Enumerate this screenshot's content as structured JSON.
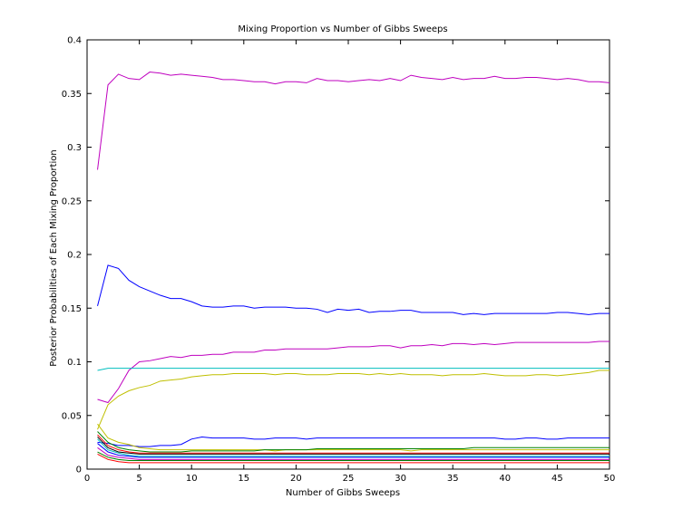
{
  "chart_data": {
    "type": "line",
    "title": "Mixing Proportion vs Number of Gibbs Sweeps",
    "xlabel": "Number of Gibbs Sweeps",
    "ylabel": "Posterior Probabilities of Each Mixing Proportion",
    "xlim": [
      0,
      50
    ],
    "ylim": [
      0,
      0.4
    ],
    "xticks": [
      0,
      5,
      10,
      15,
      20,
      25,
      30,
      35,
      40,
      45,
      50
    ],
    "yticks": [
      0,
      0.05,
      0.1,
      0.15,
      0.2,
      0.25,
      0.3,
      0.35,
      0.4
    ],
    "grid": false,
    "legend": "none",
    "x": [
      1,
      2,
      3,
      4,
      5,
      6,
      7,
      8,
      9,
      10,
      11,
      12,
      13,
      14,
      15,
      16,
      17,
      18,
      19,
      20,
      21,
      22,
      23,
      24,
      25,
      26,
      27,
      28,
      29,
      30,
      31,
      32,
      33,
      34,
      35,
      36,
      37,
      38,
      39,
      40,
      41,
      42,
      43,
      44,
      45,
      46,
      47,
      48,
      49,
      50
    ],
    "series": [
      {
        "color": "#bf00bf",
        "values": [
          0.279,
          0.358,
          0.368,
          0.364,
          0.363,
          0.37,
          0.369,
          0.367,
          0.368,
          0.367,
          0.366,
          0.365,
          0.363,
          0.363,
          0.362,
          0.361,
          0.361,
          0.359,
          0.361,
          0.361,
          0.36,
          0.364,
          0.362,
          0.362,
          0.361,
          0.362,
          0.363,
          0.362,
          0.364,
          0.362,
          0.367,
          0.365,
          0.364,
          0.363,
          0.365,
          0.363,
          0.364,
          0.364,
          0.366,
          0.364,
          0.364,
          0.365,
          0.365,
          0.364,
          0.363,
          0.364,
          0.363,
          0.361,
          0.361,
          0.36
        ]
      },
      {
        "color": "#0000ff",
        "values": [
          0.152,
          0.19,
          0.187,
          0.176,
          0.17,
          0.166,
          0.162,
          0.159,
          0.159,
          0.156,
          0.152,
          0.151,
          0.151,
          0.152,
          0.152,
          0.15,
          0.151,
          0.151,
          0.151,
          0.15,
          0.15,
          0.149,
          0.146,
          0.149,
          0.148,
          0.149,
          0.146,
          0.147,
          0.147,
          0.148,
          0.148,
          0.146,
          0.146,
          0.146,
          0.146,
          0.144,
          0.145,
          0.144,
          0.145,
          0.145,
          0.145,
          0.145,
          0.145,
          0.145,
          0.146,
          0.146,
          0.145,
          0.144,
          0.145,
          0.145
        ]
      },
      {
        "color": "#bf00bf",
        "values": [
          0.065,
          0.062,
          0.075,
          0.092,
          0.1,
          0.101,
          0.103,
          0.105,
          0.104,
          0.106,
          0.106,
          0.107,
          0.107,
          0.109,
          0.109,
          0.109,
          0.111,
          0.111,
          0.112,
          0.112,
          0.112,
          0.112,
          0.112,
          0.113,
          0.114,
          0.114,
          0.114,
          0.115,
          0.115,
          0.113,
          0.115,
          0.115,
          0.116,
          0.115,
          0.117,
          0.117,
          0.116,
          0.117,
          0.116,
          0.117,
          0.118,
          0.118,
          0.118,
          0.118,
          0.118,
          0.118,
          0.118,
          0.118,
          0.119,
          0.119
        ]
      },
      {
        "color": "#00bfbf",
        "values": [
          0.092,
          0.094,
          0.094,
          0.094,
          0.094,
          0.094,
          0.094,
          0.094,
          0.094,
          0.094,
          0.094,
          0.094,
          0.094,
          0.094,
          0.094,
          0.094,
          0.094,
          0.094,
          0.094,
          0.094,
          0.094,
          0.094,
          0.094,
          0.094,
          0.094,
          0.094,
          0.094,
          0.094,
          0.094,
          0.094,
          0.094,
          0.094,
          0.094,
          0.094,
          0.094,
          0.094,
          0.094,
          0.094,
          0.094,
          0.094,
          0.094,
          0.094,
          0.094,
          0.094,
          0.094,
          0.094,
          0.094,
          0.094,
          0.094,
          0.094
        ]
      },
      {
        "color": "#bfbf00",
        "values": [
          0.037,
          0.06,
          0.068,
          0.073,
          0.076,
          0.078,
          0.082,
          0.083,
          0.084,
          0.086,
          0.087,
          0.088,
          0.088,
          0.089,
          0.089,
          0.089,
          0.089,
          0.088,
          0.089,
          0.089,
          0.088,
          0.088,
          0.088,
          0.089,
          0.089,
          0.089,
          0.088,
          0.089,
          0.088,
          0.089,
          0.088,
          0.088,
          0.088,
          0.087,
          0.088,
          0.088,
          0.088,
          0.089,
          0.088,
          0.087,
          0.087,
          0.087,
          0.088,
          0.088,
          0.087,
          0.088,
          0.089,
          0.09,
          0.092,
          0.092
        ]
      },
      {
        "color": "#0000ff",
        "values": [
          0.025,
          0.024,
          0.022,
          0.022,
          0.021,
          0.021,
          0.022,
          0.022,
          0.023,
          0.028,
          0.03,
          0.029,
          0.029,
          0.029,
          0.029,
          0.028,
          0.028,
          0.029,
          0.029,
          0.029,
          0.028,
          0.029,
          0.029,
          0.029,
          0.029,
          0.029,
          0.029,
          0.029,
          0.029,
          0.029,
          0.029,
          0.029,
          0.029,
          0.029,
          0.029,
          0.029,
          0.029,
          0.029,
          0.029,
          0.028,
          0.028,
          0.029,
          0.029,
          0.028,
          0.028,
          0.029,
          0.029,
          0.029,
          0.029,
          0.029
        ]
      },
      {
        "color": "#bfbf00",
        "values": [
          0.042,
          0.029,
          0.025,
          0.023,
          0.02,
          0.019,
          0.018,
          0.018,
          0.018,
          0.018,
          0.018,
          0.018,
          0.018,
          0.018,
          0.018,
          0.018,
          0.018,
          0.017,
          0.018,
          0.018,
          0.018,
          0.018,
          0.018,
          0.018,
          0.018,
          0.018,
          0.018,
          0.018,
          0.018,
          0.018,
          0.017,
          0.018,
          0.018,
          0.018,
          0.018,
          0.018,
          0.018,
          0.018,
          0.018,
          0.018,
          0.018,
          0.018,
          0.018,
          0.018,
          0.018,
          0.018,
          0.018,
          0.018,
          0.018,
          0.018
        ]
      },
      {
        "color": "#008000",
        "values": [
          0.035,
          0.025,
          0.02,
          0.018,
          0.017,
          0.016,
          0.016,
          0.016,
          0.016,
          0.017,
          0.017,
          0.017,
          0.017,
          0.017,
          0.017,
          0.017,
          0.018,
          0.018,
          0.018,
          0.018,
          0.018,
          0.019,
          0.019,
          0.019,
          0.019,
          0.019,
          0.019,
          0.019,
          0.019,
          0.019,
          0.019,
          0.019,
          0.019,
          0.019,
          0.019,
          0.019,
          0.02,
          0.02,
          0.02,
          0.02,
          0.02,
          0.02,
          0.02,
          0.02,
          0.02,
          0.02,
          0.02,
          0.02,
          0.02,
          0.02
        ]
      },
      {
        "color": "#ff0000",
        "values": [
          0.032,
          0.022,
          0.018,
          0.016,
          0.015,
          0.015,
          0.015,
          0.015,
          0.015,
          0.015,
          0.015,
          0.015,
          0.015,
          0.015,
          0.015,
          0.015,
          0.015,
          0.015,
          0.015,
          0.015,
          0.015,
          0.015,
          0.015,
          0.015,
          0.015,
          0.015,
          0.015,
          0.015,
          0.015,
          0.015,
          0.015,
          0.015,
          0.015,
          0.015,
          0.015,
          0.015,
          0.015,
          0.015,
          0.015,
          0.015,
          0.015,
          0.015,
          0.015,
          0.015,
          0.015,
          0.015,
          0.015,
          0.015,
          0.015,
          0.015
        ]
      },
      {
        "color": "#000000",
        "values": [
          0.03,
          0.02,
          0.016,
          0.015,
          0.014,
          0.014,
          0.014,
          0.014,
          0.014,
          0.014,
          0.014,
          0.014,
          0.014,
          0.014,
          0.014,
          0.014,
          0.014,
          0.014,
          0.014,
          0.014,
          0.014,
          0.014,
          0.014,
          0.014,
          0.014,
          0.014,
          0.014,
          0.014,
          0.014,
          0.014,
          0.014,
          0.014,
          0.014,
          0.014,
          0.014,
          0.014,
          0.014,
          0.014,
          0.014,
          0.014,
          0.014,
          0.014,
          0.014,
          0.014,
          0.014,
          0.014,
          0.014,
          0.014,
          0.014,
          0.014
        ]
      },
      {
        "color": "#00bfbf",
        "values": [
          0.028,
          0.018,
          0.015,
          0.013,
          0.012,
          0.012,
          0.012,
          0.012,
          0.012,
          0.012,
          0.012,
          0.012,
          0.012,
          0.012,
          0.012,
          0.012,
          0.012,
          0.012,
          0.012,
          0.012,
          0.012,
          0.012,
          0.012,
          0.012,
          0.012,
          0.012,
          0.012,
          0.012,
          0.012,
          0.012,
          0.012,
          0.012,
          0.012,
          0.012,
          0.012,
          0.012,
          0.012,
          0.012,
          0.012,
          0.012,
          0.012,
          0.012,
          0.012,
          0.012,
          0.012,
          0.012,
          0.012,
          0.012,
          0.012,
          0.012
        ]
      },
      {
        "color": "#0000ff",
        "values": [
          0.024,
          0.016,
          0.013,
          0.012,
          0.011,
          0.011,
          0.011,
          0.011,
          0.011,
          0.011,
          0.011,
          0.011,
          0.011,
          0.011,
          0.011,
          0.011,
          0.011,
          0.011,
          0.011,
          0.011,
          0.011,
          0.011,
          0.011,
          0.011,
          0.011,
          0.011,
          0.011,
          0.011,
          0.011,
          0.011,
          0.011,
          0.011,
          0.011,
          0.011,
          0.011,
          0.011,
          0.011,
          0.011,
          0.011,
          0.011,
          0.011,
          0.011,
          0.011,
          0.011,
          0.011,
          0.011,
          0.011,
          0.011,
          0.011,
          0.011
        ]
      },
      {
        "color": "#bf00bf",
        "values": [
          0.02,
          0.013,
          0.011,
          0.01,
          0.009,
          0.009,
          0.009,
          0.009,
          0.009,
          0.009,
          0.009,
          0.009,
          0.009,
          0.009,
          0.009,
          0.009,
          0.009,
          0.009,
          0.009,
          0.009,
          0.009,
          0.009,
          0.009,
          0.009,
          0.009,
          0.009,
          0.009,
          0.009,
          0.009,
          0.009,
          0.009,
          0.009,
          0.009,
          0.009,
          0.009,
          0.009,
          0.009,
          0.009,
          0.009,
          0.009,
          0.009,
          0.009,
          0.009,
          0.009,
          0.009,
          0.009,
          0.009,
          0.009,
          0.009,
          0.009
        ]
      },
      {
        "color": "#008000",
        "values": [
          0.016,
          0.011,
          0.009,
          0.008,
          0.008,
          0.008,
          0.008,
          0.008,
          0.008,
          0.008,
          0.008,
          0.008,
          0.008,
          0.008,
          0.008,
          0.008,
          0.008,
          0.008,
          0.008,
          0.008,
          0.008,
          0.008,
          0.008,
          0.008,
          0.008,
          0.008,
          0.008,
          0.008,
          0.008,
          0.008,
          0.008,
          0.008,
          0.008,
          0.008,
          0.008,
          0.008,
          0.008,
          0.008,
          0.008,
          0.008,
          0.008,
          0.008,
          0.008,
          0.008,
          0.008,
          0.008,
          0.008,
          0.008,
          0.008,
          0.008
        ]
      },
      {
        "color": "#ff0000",
        "values": [
          0.014,
          0.009,
          0.007,
          0.006,
          0.006,
          0.006,
          0.006,
          0.006,
          0.006,
          0.006,
          0.006,
          0.006,
          0.006,
          0.006,
          0.006,
          0.006,
          0.006,
          0.006,
          0.006,
          0.006,
          0.006,
          0.006,
          0.006,
          0.006,
          0.006,
          0.006,
          0.006,
          0.006,
          0.006,
          0.006,
          0.006,
          0.006,
          0.006,
          0.006,
          0.006,
          0.006,
          0.006,
          0.006,
          0.006,
          0.006,
          0.006,
          0.006,
          0.006,
          0.006,
          0.006,
          0.006,
          0.006,
          0.006,
          0.006,
          0.006
        ]
      }
    ]
  }
}
